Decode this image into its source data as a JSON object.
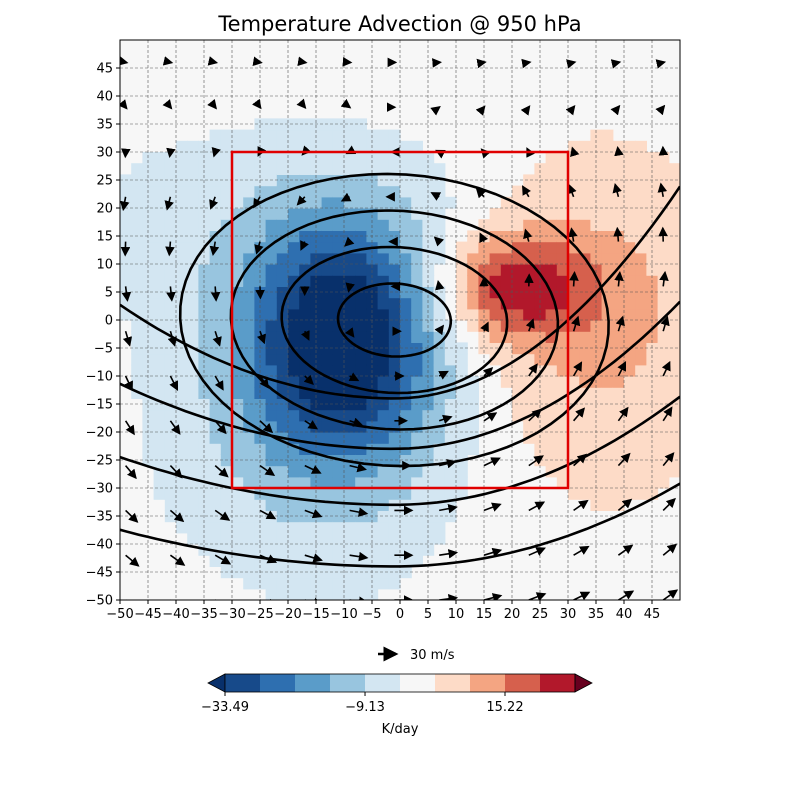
{
  "chart_data": {
    "type": "heatmap",
    "title": "Temperature Advection @ 950 hPa",
    "xlim": [
      -50,
      50
    ],
    "ylim": [
      -50,
      50
    ],
    "x_ticks": [
      -50,
      -45,
      -40,
      -35,
      -30,
      -25,
      -20,
      -15,
      -10,
      -5,
      0,
      5,
      10,
      15,
      20,
      25,
      30,
      35,
      40,
      45
    ],
    "y_ticks": [
      -50,
      -45,
      -40,
      -35,
      -30,
      -25,
      -20,
      -15,
      -10,
      -5,
      0,
      5,
      10,
      15,
      20,
      25,
      30,
      35,
      40,
      45
    ],
    "grid": true,
    "colormap": "RdBu_r",
    "colors": [
      "#08306b",
      "#174a8a",
      "#2e6fb0",
      "#5a9cc9",
      "#98c5df",
      "#d3e6f2",
      "#f7f7f7",
      "#fddbc7",
      "#f4a582",
      "#d6604d",
      "#b2182b",
      "#67001f"
    ],
    "advection_field": {
      "cold_center": [
        -10,
        -3
      ],
      "cold_peak": -33.49,
      "warm_center": [
        20,
        6
      ],
      "warm_peak": 22
    },
    "colorbar": {
      "label": "K/day",
      "ticks": [
        -33.49,
        -9.13,
        15.22
      ],
      "tick_labels": [
        "−33.49",
        "−9.13",
        "15.22"
      ],
      "extend": "both"
    },
    "pressure_contours": {
      "color": "#000000",
      "center": [
        -1,
        0
      ],
      "closed_semi_axes": [
        [
          10,
          6.5
        ],
        [
          20,
          13
        ],
        [
          29,
          19.5
        ],
        [
          38,
          26
        ]
      ],
      "open_contour_sagging_to_y": [
        -14,
        -23,
        -33,
        -44
      ]
    },
    "wind_vectors": {
      "grid_spacing": 8,
      "reference_key": {
        "speed": 30,
        "label": "30 m/s"
      }
    },
    "highlight_box": {
      "x": [
        -30,
        30
      ],
      "y": [
        -30,
        30
      ],
      "color": "#e00000"
    }
  }
}
